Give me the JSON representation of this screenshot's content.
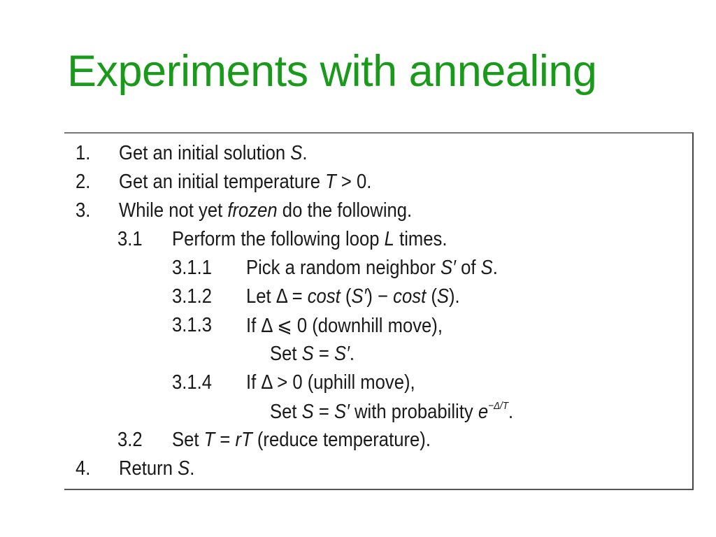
{
  "title": "Experiments with annealing",
  "algorithm": {
    "lines": [
      {
        "num": "1.",
        "level": 0,
        "parts": [
          {
            "t": "Get an initial solution "
          },
          {
            "t": "S",
            "i": true
          },
          {
            "t": "."
          }
        ]
      },
      {
        "num": "2.",
        "level": 0,
        "parts": [
          {
            "t": "Get an initial temperature "
          },
          {
            "t": "T",
            "i": true
          },
          {
            "t": " > 0."
          }
        ]
      },
      {
        "num": "3.",
        "level": 0,
        "parts": [
          {
            "t": "While not yet "
          },
          {
            "t": "frozen",
            "i": true
          },
          {
            "t": " do the following."
          }
        ]
      },
      {
        "num": "3.1",
        "level": 1,
        "parts": [
          {
            "t": "Perform the following loop "
          },
          {
            "t": "L",
            "i": true
          },
          {
            "t": " times."
          }
        ]
      },
      {
        "num": "3.1.1",
        "level": 2,
        "parts": [
          {
            "t": "Pick a random neighbor "
          },
          {
            "t": "S′",
            "i": true
          },
          {
            "t": " of "
          },
          {
            "t": "S",
            "i": true
          },
          {
            "t": "."
          }
        ]
      },
      {
        "num": "3.1.2",
        "level": 2,
        "parts": [
          {
            "t": "Let Δ = "
          },
          {
            "t": "cost",
            "i": true
          },
          {
            "t": " ("
          },
          {
            "t": "S′",
            "i": true
          },
          {
            "t": ") − "
          },
          {
            "t": "cost",
            "i": true
          },
          {
            "t": " ("
          },
          {
            "t": "S",
            "i": true
          },
          {
            "t": ")."
          }
        ]
      },
      {
        "num": "3.1.3",
        "level": 2,
        "parts": [
          {
            "t": "If Δ ⩽ 0 (downhill move),"
          }
        ]
      },
      {
        "num": "",
        "level": 3,
        "parts": [
          {
            "t": "Set "
          },
          {
            "t": "S",
            "i": true
          },
          {
            "t": " = "
          },
          {
            "t": "S′",
            "i": true
          },
          {
            "t": "."
          }
        ]
      },
      {
        "num": "3.1.4",
        "level": 2,
        "parts": [
          {
            "t": "If Δ > 0 (uphill move),"
          }
        ]
      },
      {
        "num": "",
        "level": 3,
        "parts": [
          {
            "t": "Set "
          },
          {
            "t": "S",
            "i": true
          },
          {
            "t": " = "
          },
          {
            "t": "S′",
            "i": true
          },
          {
            "t": " with probability "
          },
          {
            "t": "e",
            "i": true
          },
          {
            "t": "−Δ/T",
            "sup": true
          },
          {
            "t": "."
          }
        ]
      },
      {
        "num": "3.2",
        "level": 1,
        "parts": [
          {
            "t": "Set "
          },
          {
            "t": "T",
            "i": true
          },
          {
            "t": " = "
          },
          {
            "t": "rT",
            "i": true
          },
          {
            "t": " (reduce temperature)."
          }
        ]
      },
      {
        "num": "4.",
        "level": 0,
        "parts": [
          {
            "t": "Return "
          },
          {
            "t": "S",
            "i": true
          },
          {
            "t": "."
          }
        ]
      }
    ]
  }
}
